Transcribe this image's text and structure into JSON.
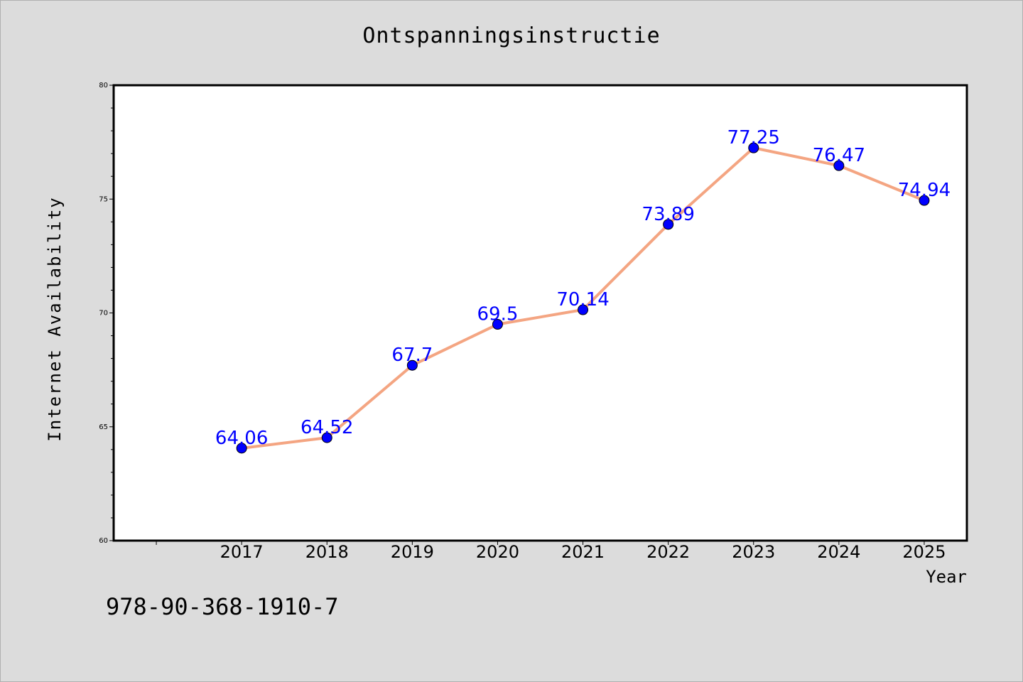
{
  "chart_data": {
    "type": "line",
    "title": "Ontspanningsinstructie",
    "xlabel": "Year",
    "ylabel": "Internet Availability",
    "categories": [
      "2017",
      "2018",
      "2019",
      "2020",
      "2021",
      "2022",
      "2023",
      "2024",
      "2025"
    ],
    "series": [
      {
        "values": [
          64.06,
          64.52,
          67.7,
          69.5,
          70.14,
          73.89,
          77.25,
          76.47,
          74.94
        ],
        "labels": [
          "64.06",
          "64.52",
          "67.7",
          "69.5",
          "70.14",
          "73.89",
          "77.25",
          "76.47",
          "74.94"
        ],
        "line_color": "#f4a582",
        "marker_color": "#0000ff",
        "label_color": "#0000ff"
      }
    ],
    "ylim": [
      60,
      80
    ],
    "yticks": [
      60,
      65,
      70,
      75,
      80
    ],
    "grid": false,
    "legend": "none"
  },
  "footer": {
    "isbn": "978-90-368-1910-7"
  },
  "colors": {
    "background": "#dcdcdc",
    "plot_background": "#ffffff"
  }
}
